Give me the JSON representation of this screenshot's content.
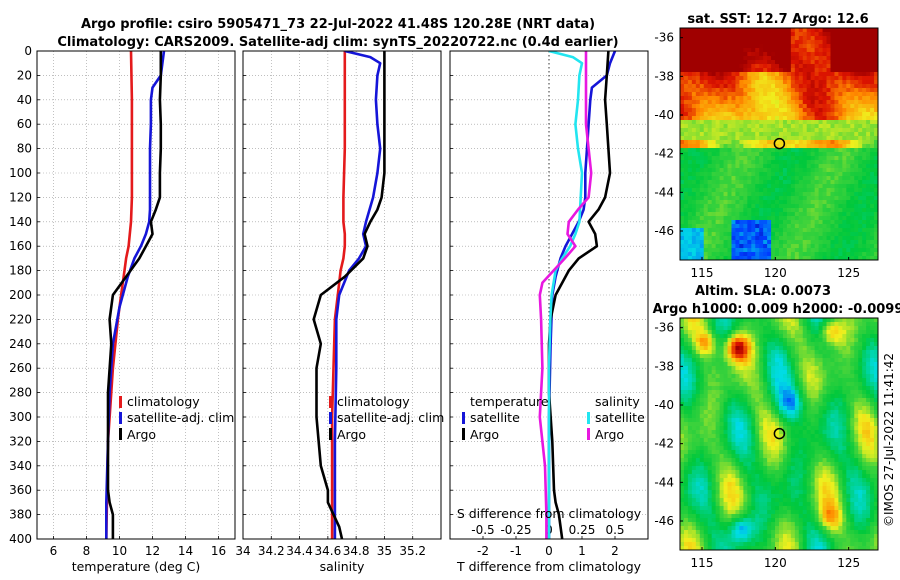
{
  "title": {
    "line1": "Argo profile: csiro 5905471_73 22-Jul-2022 41.48S 120.28E (NRT data)",
    "line2": "Climatology: CARS2009. Satellite-adj clim: synTS_20220722.nc (0.4d earlier)"
  },
  "colors": {
    "red": "#e41a1c",
    "blue": "#1515d8",
    "black": "#000000",
    "cyan": "#22e5f0",
    "magenta": "#e818e0"
  },
  "depth_ticks": [
    "0",
    "20",
    "40",
    "60",
    "80",
    "100",
    "120",
    "140",
    "160",
    "180",
    "200",
    "220",
    "240",
    "260",
    "280",
    "300",
    "320",
    "340",
    "360",
    "380",
    "400"
  ],
  "chart_data": [
    {
      "type": "line",
      "name": "temperature-panel",
      "xlabel": "temperature (deg C)",
      "ylabel": "depth",
      "xlim": [
        5,
        17
      ],
      "ylim": [
        0,
        400
      ],
      "y_reversed": true,
      "xticks": [
        6,
        8,
        10,
        12,
        14,
        16
      ],
      "xtick_labels": [
        "6",
        "8",
        "10",
        "12",
        "14",
        "16"
      ],
      "series": [
        {
          "name": "climatology",
          "color": "#e41a1c",
          "x": [
            10.7,
            10.75,
            10.75,
            10.75,
            10.7,
            10.55,
            10.4,
            10.3,
            10.1,
            9.9,
            9.6,
            9.3,
            9.2
          ],
          "y": [
            0,
            40,
            80,
            120,
            140,
            160,
            170,
            180,
            200,
            220,
            260,
            320,
            400
          ]
        },
        {
          "name": "satellite-adj. clim",
          "color": "#1515d8",
          "x": [
            12.7,
            12.6,
            12.5,
            12.0,
            11.9,
            11.9,
            11.85,
            11.85,
            11.85,
            11.8,
            11.6,
            11.3,
            10.9,
            10.5,
            10.0,
            9.6,
            9.4,
            9.3,
            9.2,
            9.2
          ],
          "y": [
            0,
            10,
            20,
            30,
            40,
            60,
            80,
            100,
            130,
            140,
            150,
            160,
            170,
            185,
            210,
            240,
            280,
            320,
            370,
            400
          ]
        },
        {
          "name": "Argo",
          "color": "#000000",
          "x": [
            12.5,
            12.5,
            12.45,
            12.5,
            12.5,
            12.45,
            12.45,
            12.2,
            11.9,
            12.0,
            11.6,
            11.2,
            10.4,
            9.6,
            9.4,
            9.5,
            9.3,
            9.3,
            9.3,
            9.4,
            9.6,
            9.6
          ],
          "y": [
            0,
            20,
            40,
            60,
            80,
            100,
            120,
            130,
            140,
            150,
            160,
            170,
            185,
            200,
            220,
            240,
            280,
            320,
            360,
            370,
            380,
            400
          ]
        }
      ],
      "legend": {
        "placement": "lower-right",
        "items": [
          "climatology",
          "satellite-adj. clim",
          "Argo"
        ]
      }
    },
    {
      "type": "line",
      "name": "salinity-panel",
      "xlabel": "salinity",
      "ylabel": "depth",
      "xlim": [
        34,
        35.4
      ],
      "ylim": [
        0,
        400
      ],
      "y_reversed": true,
      "xticks": [
        34,
        34.2,
        34.4,
        34.6,
        34.8,
        35,
        35.2
      ],
      "xtick_labels": [
        "34",
        "34.2",
        "34.4",
        "34.6",
        "34.8",
        "35",
        "35.2"
      ],
      "series": [
        {
          "name": "climatology",
          "color": "#e41a1c",
          "x": [
            34.72,
            34.72,
            34.72,
            34.71,
            34.71,
            34.72,
            34.72,
            34.71,
            34.69,
            34.67,
            34.65,
            34.64,
            34.63,
            34.63,
            34.63
          ],
          "y": [
            0,
            40,
            80,
            120,
            140,
            150,
            160,
            170,
            180,
            200,
            220,
            260,
            300,
            360,
            400
          ]
        },
        {
          "name": "satellite-adj. clim",
          "color": "#1515d8",
          "x": [
            34.72,
            34.9,
            34.97,
            34.95,
            34.94,
            34.95,
            34.97,
            34.95,
            34.92,
            34.87,
            34.85,
            34.87,
            34.82,
            34.75,
            34.68,
            34.66,
            34.66,
            34.65,
            34.65,
            34.65
          ],
          "y": [
            0,
            5,
            10,
            20,
            40,
            60,
            80,
            100,
            120,
            140,
            150,
            160,
            170,
            180,
            200,
            220,
            260,
            320,
            380,
            400
          ]
        },
        {
          "name": "Argo",
          "color": "#000000",
          "x": [
            35.0,
            35.0,
            35.0,
            35.0,
            35.0,
            35.0,
            34.98,
            34.95,
            34.9,
            34.86,
            34.88,
            34.85,
            34.72,
            34.55,
            34.5,
            34.55,
            34.52,
            34.52,
            34.55,
            34.6,
            34.6,
            34.64,
            34.68,
            34.7
          ],
          "y": [
            0,
            20,
            40,
            60,
            80,
            100,
            120,
            130,
            140,
            150,
            160,
            170,
            185,
            200,
            220,
            240,
            260,
            300,
            340,
            360,
            370,
            380,
            390,
            400
          ]
        }
      ],
      "legend": {
        "placement": "lower-right",
        "items": [
          "climatology",
          "satellite-adj. clim",
          "Argo"
        ]
      }
    },
    {
      "type": "line",
      "name": "difference-panel",
      "xlabel": "T difference from climatology",
      "xlabel_top": "S difference from climatology",
      "ylabel": "depth",
      "xlim": [
        -3.0,
        3.0
      ],
      "ylim": [
        0,
        400
      ],
      "y_reversed": true,
      "xticks": [
        -2,
        -1,
        0,
        1,
        2
      ],
      "xtick_labels": [
        "-2",
        "-1",
        "0",
        "1",
        "2"
      ],
      "secondary_xlim": [
        -0.75,
        0.75
      ],
      "secondary_xticks": [
        -0.5,
        -0.25,
        0,
        0.25,
        0.5
      ],
      "secondary_xtick_labels": [
        "-0.5",
        "-0.25",
        "0",
        "0.25",
        "0.5"
      ],
      "zero_line": "dotted",
      "series": [
        {
          "name": "temperature satellite",
          "color": "#1515d8",
          "axis": "T",
          "x": [
            2.0,
            1.85,
            1.75,
            1.3,
            1.25,
            1.2,
            1.15,
            1.1,
            1.1,
            1.05,
            0.9,
            0.7,
            0.5,
            0.35,
            0.2,
            0.1,
            0.05,
            0.0,
            0.0,
            0.0
          ],
          "y": [
            0,
            10,
            20,
            30,
            40,
            60,
            80,
            100,
            120,
            130,
            140,
            150,
            160,
            170,
            185,
            200,
            240,
            300,
            360,
            400
          ]
        },
        {
          "name": "temperature Argo",
          "color": "#000000",
          "axis": "T",
          "x": [
            1.8,
            1.75,
            1.7,
            1.75,
            1.8,
            1.85,
            1.7,
            1.5,
            1.2,
            1.4,
            1.45,
            0.9,
            0.6,
            0.2,
            0.05,
            0.0,
            0.0,
            0.1,
            0.15,
            0.2,
            0.3,
            0.4
          ],
          "y": [
            0,
            20,
            40,
            60,
            80,
            100,
            120,
            130,
            140,
            150,
            160,
            170,
            180,
            200,
            220,
            240,
            280,
            320,
            360,
            370,
            380,
            400
          ]
        },
        {
          "name": "salinity satellite",
          "color": "#22e5f0",
          "axis": "S",
          "x": [
            0.0,
            0.18,
            0.25,
            0.23,
            0.22,
            0.2,
            0.22,
            0.25,
            0.24,
            0.23,
            0.2,
            0.16,
            0.1,
            0.05,
            0.02,
            0.01,
            0.0,
            0.0,
            0.0
          ],
          "y": [
            0,
            5,
            10,
            20,
            40,
            60,
            80,
            100,
            120,
            140,
            150,
            160,
            170,
            180,
            200,
            220,
            260,
            320,
            400
          ]
        },
        {
          "name": "salinity Argo",
          "color": "#e818e0",
          "axis": "S",
          "x": [
            0.28,
            0.28,
            0.28,
            0.28,
            0.3,
            0.32,
            0.3,
            0.22,
            0.15,
            0.14,
            0.2,
            0.12,
            -0.05,
            -0.07,
            -0.06,
            -0.05,
            -0.07,
            -0.03,
            -0.02,
            -0.02
          ],
          "y": [
            0,
            20,
            40,
            60,
            80,
            100,
            120,
            130,
            140,
            150,
            160,
            170,
            190,
            200,
            220,
            260,
            300,
            340,
            380,
            400
          ]
        }
      ],
      "legend": {
        "temperature_title": "temperature",
        "salinity_title": "salinity",
        "temperature_items": [
          "satellite",
          "Argo"
        ],
        "salinity_items": [
          "satellite",
          "Argo"
        ]
      }
    },
    {
      "type": "heatmap",
      "name": "sst-map",
      "title": "sat. SST: 12.7 Argo: 12.6",
      "xlim": [
        113.5,
        127
      ],
      "ylim": [
        -47.5,
        -35.5
      ],
      "xticks": [
        115,
        120,
        125
      ],
      "xtick_labels": [
        "115",
        "120",
        "125"
      ],
      "yticks": [
        -36,
        -38,
        -40,
        -42,
        -44,
        -46
      ],
      "ytick_labels": [
        "-36",
        "-38",
        "-40",
        "-42",
        "-44",
        "-46"
      ],
      "marker": {
        "lon": 120.28,
        "lat": -41.48
      }
    },
    {
      "type": "heatmap",
      "name": "sla-map",
      "title_line1": "Altim. SLA: 0.0073",
      "title_line2": "Argo h1000: 0.009 h2000: -0.0099",
      "xlim": [
        113.5,
        127
      ],
      "ylim": [
        -47.5,
        -35.5
      ],
      "xticks": [
        115,
        120,
        125
      ],
      "xtick_labels": [
        "115",
        "120",
        "125"
      ],
      "yticks": [
        -36,
        -38,
        -40,
        -42,
        -44,
        -46
      ],
      "ytick_labels": [
        "-36",
        "-38",
        "-40",
        "-42",
        "-44",
        "-46"
      ],
      "marker": {
        "lon": 120.28,
        "lat": -41.48
      }
    }
  ],
  "watermark": "©IMOS 27-Jul-2022 11:41:42"
}
